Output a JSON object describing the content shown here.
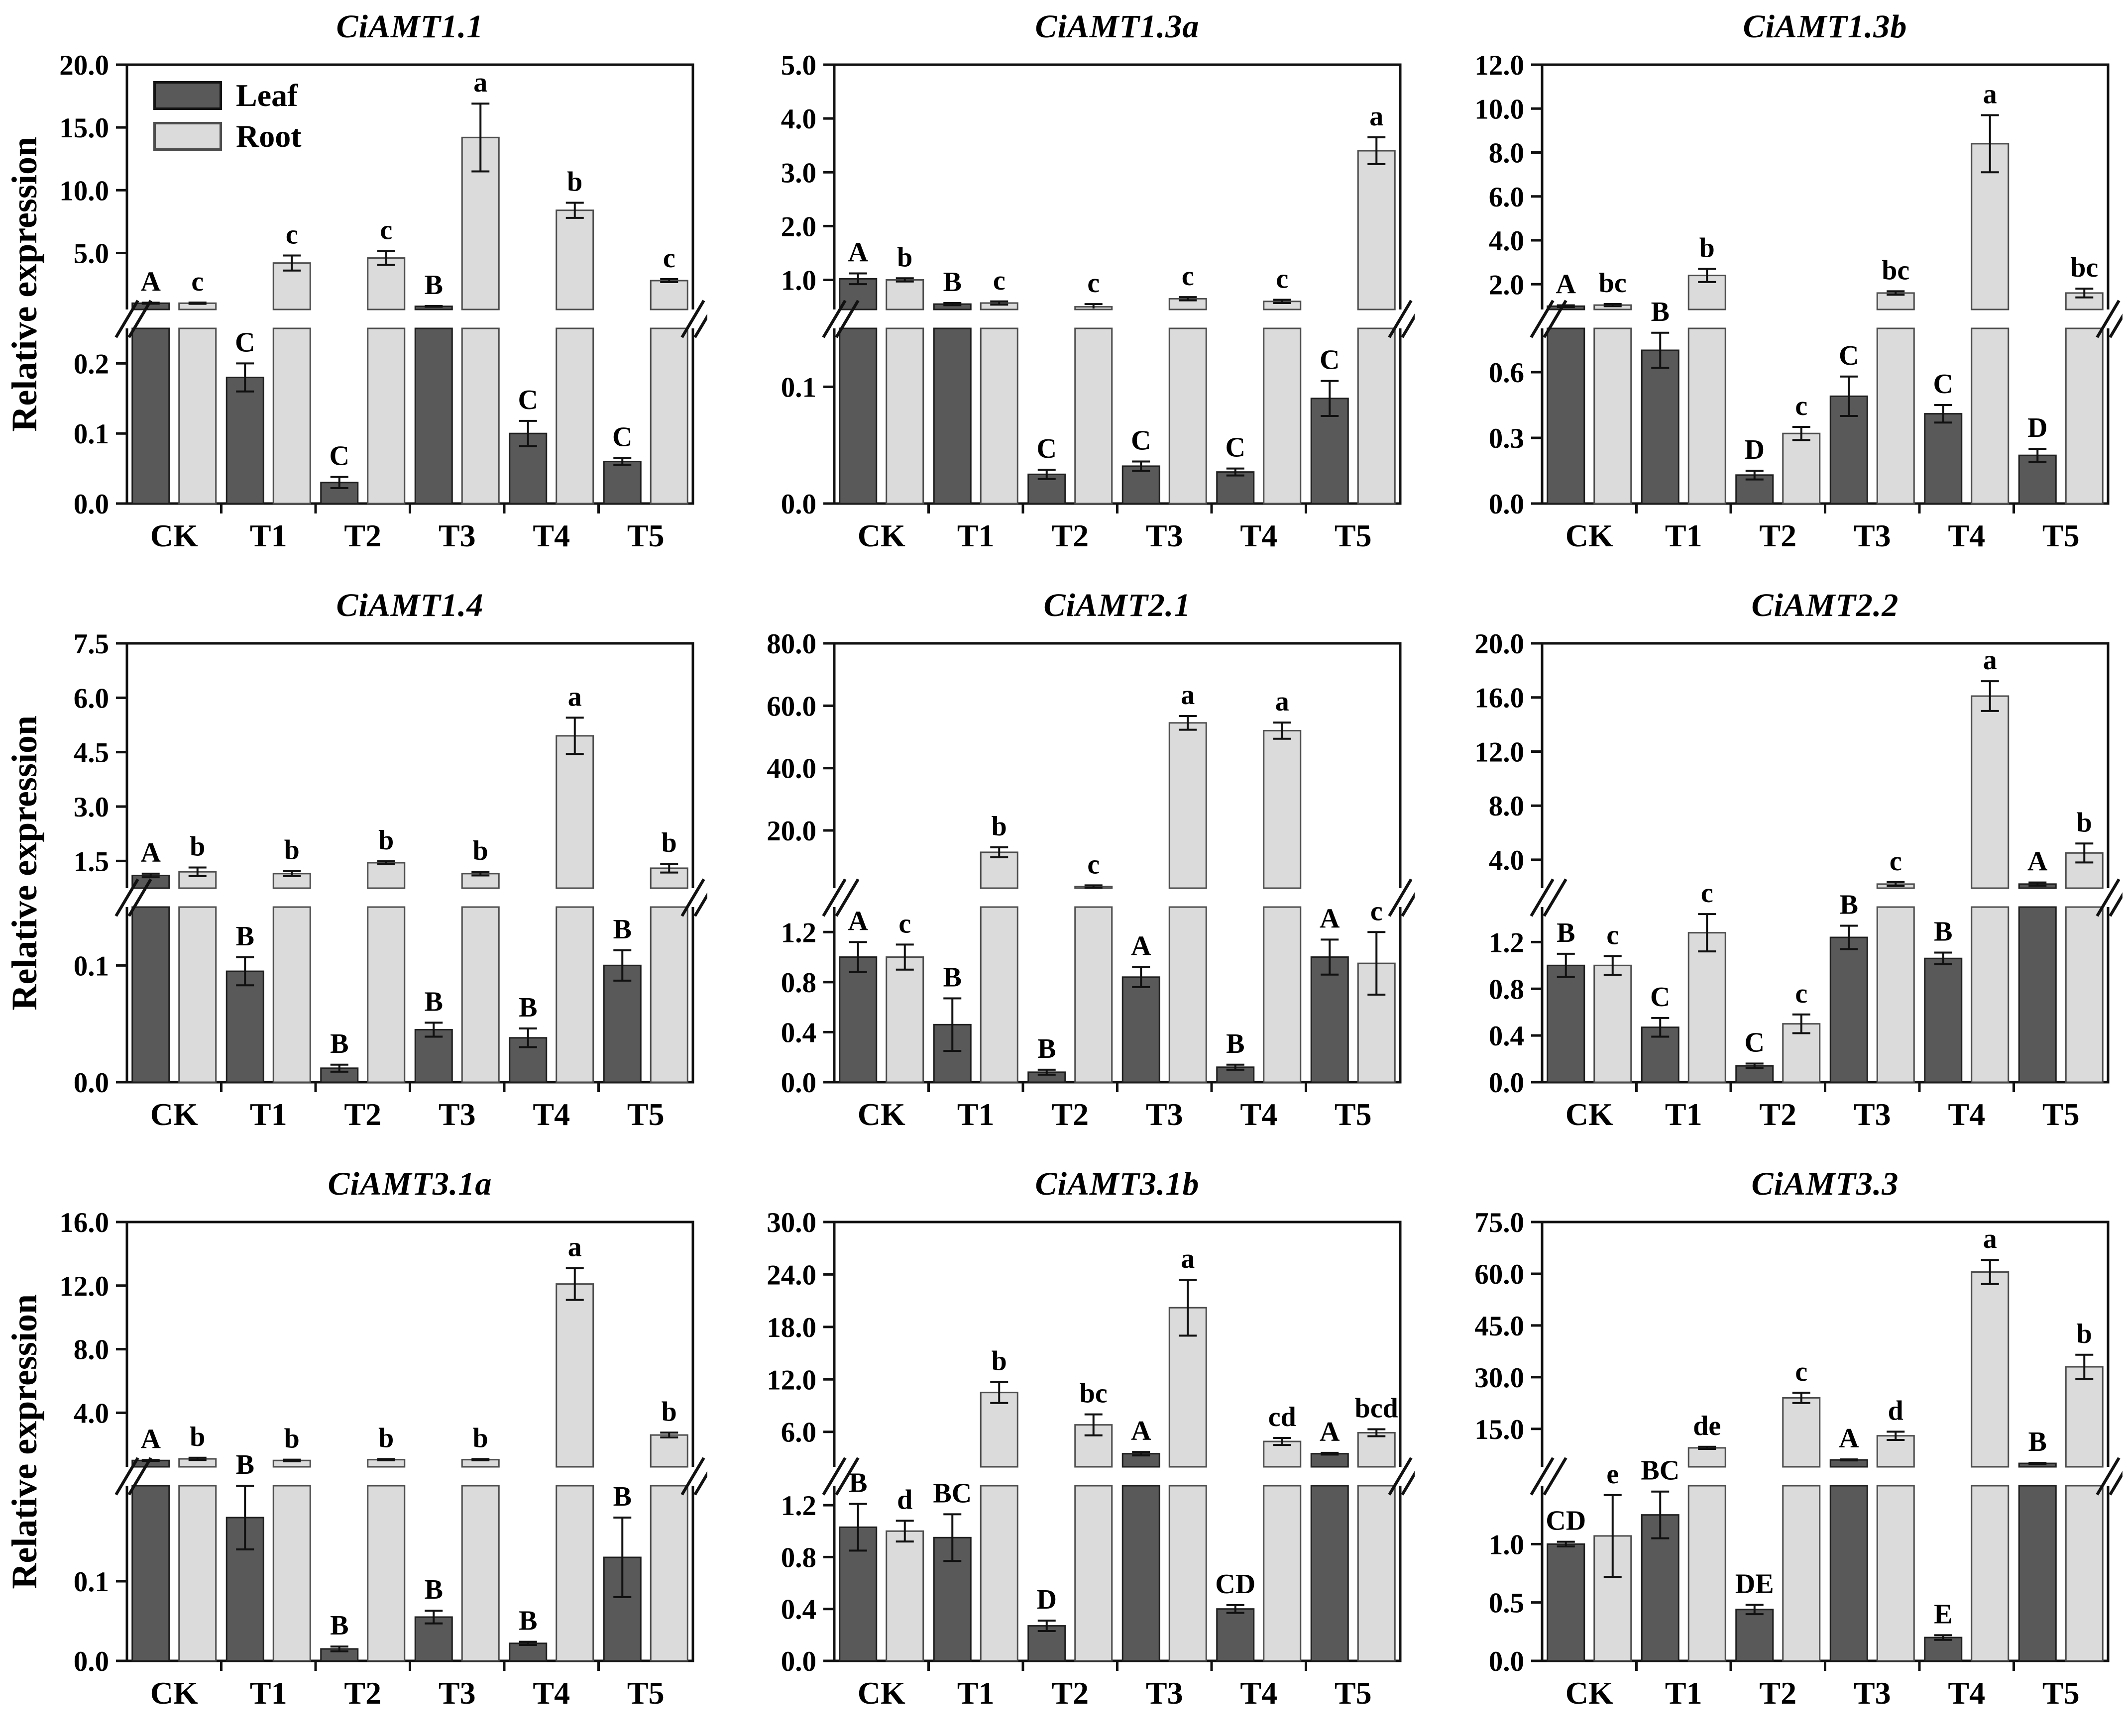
{
  "figure": {
    "ylabel": "Relative expression",
    "legend": {
      "leaf_label": "Leaf",
      "root_label": "Root"
    },
    "categories": [
      "CK",
      "T1",
      "T2",
      "T3",
      "T4",
      "T5"
    ],
    "colors": {
      "leaf_fill": "#595959",
      "leaf_stroke": "#1f1f1f",
      "root_fill": "#dbdbdb",
      "root_stroke": "#4d4d4d",
      "axis": "#111111",
      "text": "#000000"
    }
  },
  "chart_data": [
    {
      "type": "bar",
      "title": "CiAMT1.1",
      "categories": [
        "CK",
        "T1",
        "T2",
        "T3",
        "T4",
        "T5"
      ],
      "xlabel": "",
      "ylabel": "Relative expression",
      "axis": {
        "lower_ticks": [
          0,
          0.1,
          0.2
        ],
        "lower_max": 0.25,
        "upper_min": 0.5,
        "upper_max": 20,
        "upper_ticks": [
          5,
          10,
          15,
          20
        ],
        "grid": false
      },
      "series": [
        {
          "name": "Leaf",
          "values": [
            1.0,
            0.18,
            0.03,
            0.75,
            0.1,
            0.06
          ],
          "errors": [
            0.04,
            0.02,
            0.008,
            0.03,
            0.018,
            0.005
          ],
          "letters": [
            "A",
            "C",
            "C",
            "B",
            "C",
            "C"
          ]
        },
        {
          "name": "Root",
          "values": [
            1.0,
            4.2,
            4.6,
            14.2,
            8.4,
            2.8
          ],
          "errors": [
            0.05,
            0.6,
            0.55,
            2.7,
            0.6,
            0.12
          ],
          "letters": [
            "c",
            "c",
            "c",
            "a",
            "b",
            "c"
          ]
        }
      ]
    },
    {
      "type": "bar",
      "title": "CiAMT1.3a",
      "categories": [
        "CK",
        "T1",
        "T2",
        "T3",
        "T4",
        "T5"
      ],
      "xlabel": "",
      "ylabel": "Relative expression",
      "axis": {
        "lower_ticks": [
          0,
          0.1
        ],
        "lower_max": 0.15,
        "upper_min": 0.45,
        "upper_max": 5,
        "upper_ticks": [
          1,
          2,
          3,
          4,
          5
        ],
        "grid": false
      },
      "series": [
        {
          "name": "Leaf",
          "values": [
            1.02,
            0.55,
            0.025,
            0.032,
            0.027,
            0.09
          ],
          "errors": [
            0.1,
            0.02,
            0.004,
            0.004,
            0.003,
            0.015
          ],
          "letters": [
            "A",
            "B",
            "C",
            "C",
            "C",
            "C"
          ]
        },
        {
          "name": "Root",
          "values": [
            1.0,
            0.57,
            0.5,
            0.65,
            0.6,
            3.4
          ],
          "errors": [
            0.03,
            0.03,
            0.05,
            0.03,
            0.03,
            0.25
          ],
          "letters": [
            "b",
            "c",
            "c",
            "c",
            "c",
            "a"
          ]
        }
      ]
    },
    {
      "type": "bar",
      "title": "CiAMT1.3b",
      "categories": [
        "CK",
        "T1",
        "T2",
        "T3",
        "T4",
        "T5"
      ],
      "xlabel": "",
      "ylabel": "Relative expression",
      "axis": {
        "lower_ticks": [
          0,
          0.3,
          0.6
        ],
        "lower_max": 0.8,
        "upper_min": 0.85,
        "upper_max": 12,
        "upper_ticks": [
          2,
          4,
          6,
          8,
          10,
          12
        ],
        "grid": false
      },
      "series": [
        {
          "name": "Leaf",
          "values": [
            1.0,
            0.7,
            0.13,
            0.49,
            0.41,
            0.22
          ],
          "errors": [
            0.04,
            0.08,
            0.02,
            0.09,
            0.04,
            0.03
          ],
          "letters": [
            "A",
            "B",
            "D",
            "C",
            "C",
            "D"
          ]
        },
        {
          "name": "Root",
          "values": [
            1.05,
            2.4,
            0.32,
            1.6,
            8.4,
            1.6
          ],
          "errors": [
            0.05,
            0.3,
            0.03,
            0.08,
            1.3,
            0.2
          ],
          "letters": [
            "bc",
            "b",
            "c",
            "bc",
            "a",
            "bc"
          ]
        }
      ]
    },
    {
      "type": "bar",
      "title": "CiAMT1.4",
      "categories": [
        "CK",
        "T1",
        "T2",
        "T3",
        "T4",
        "T5"
      ],
      "xlabel": "",
      "ylabel": "Relative expression",
      "axis": {
        "lower_ticks": [
          0,
          0.1
        ],
        "lower_max": 0.15,
        "upper_min": 0.75,
        "upper_max": 7.5,
        "upper_ticks": [
          1.5,
          3,
          4.5,
          6,
          7.5
        ],
        "grid": false
      },
      "series": [
        {
          "name": "Leaf",
          "values": [
            1.1,
            0.095,
            0.012,
            0.045,
            0.038,
            0.1
          ],
          "errors": [
            0.05,
            0.012,
            0.003,
            0.006,
            0.008,
            0.013
          ],
          "letters": [
            "A",
            "B",
            "B",
            "B",
            "B",
            "B"
          ]
        },
        {
          "name": "Root",
          "values": [
            1.2,
            1.15,
            1.45,
            1.15,
            4.95,
            1.3
          ],
          "errors": [
            0.12,
            0.07,
            0.04,
            0.05,
            0.5,
            0.12
          ],
          "letters": [
            "b",
            "b",
            "b",
            "b",
            "a",
            "b"
          ]
        }
      ]
    },
    {
      "type": "bar",
      "title": "CiAMT2.1",
      "categories": [
        "CK",
        "T1",
        "T2",
        "T3",
        "T4",
        "T5"
      ],
      "xlabel": "",
      "ylabel": "Relative expression",
      "axis": {
        "lower_ticks": [
          0,
          0.4,
          0.8,
          1.2
        ],
        "lower_max": 1.4,
        "upper_min": 1.5,
        "upper_max": 80,
        "upper_ticks": [
          20,
          40,
          60,
          80
        ],
        "grid": false
      },
      "series": [
        {
          "name": "Leaf",
          "values": [
            1.0,
            0.46,
            0.08,
            0.84,
            0.12,
            1.0
          ],
          "errors": [
            0.12,
            0.21,
            0.02,
            0.08,
            0.02,
            0.14
          ],
          "letters": [
            "A",
            "B",
            "B",
            "A",
            "B",
            "A"
          ]
        },
        {
          "name": "Root",
          "values": [
            1.0,
            13.0,
            2.0,
            54.5,
            52.0,
            0.95
          ],
          "errors": [
            0.1,
            1.6,
            0.4,
            2.2,
            2.6,
            0.25
          ],
          "letters": [
            "c",
            "b",
            "c",
            "a",
            "a",
            "c"
          ]
        }
      ]
    },
    {
      "type": "bar",
      "title": "CiAMT2.2",
      "categories": [
        "CK",
        "T1",
        "T2",
        "T3",
        "T4",
        "T5"
      ],
      "xlabel": "",
      "ylabel": "Relative expression",
      "axis": {
        "lower_ticks": [
          0,
          0.4,
          0.8,
          1.2
        ],
        "lower_max": 1.5,
        "upper_min": 1.9,
        "upper_max": 20,
        "upper_ticks": [
          4,
          8,
          12,
          16,
          20
        ],
        "grid": false
      },
      "series": [
        {
          "name": "Leaf",
          "values": [
            1.0,
            0.47,
            0.14,
            1.24,
            1.06,
            2.2
          ],
          "errors": [
            0.1,
            0.08,
            0.02,
            0.1,
            0.05,
            0.12
          ],
          "letters": [
            "B",
            "C",
            "C",
            "B",
            "B",
            "A"
          ]
        },
        {
          "name": "Root",
          "values": [
            1.0,
            1.28,
            0.5,
            2.2,
            16.1,
            4.5
          ],
          "errors": [
            0.08,
            0.16,
            0.08,
            0.15,
            1.1,
            0.7
          ],
          "letters": [
            "c",
            "c",
            "c",
            "c",
            "a",
            "b"
          ]
        }
      ]
    },
    {
      "type": "bar",
      "title": "CiAMT3.1a",
      "categories": [
        "CK",
        "T1",
        "T2",
        "T3",
        "T4",
        "T5"
      ],
      "xlabel": "",
      "ylabel": "Relative expression",
      "axis": {
        "lower_ticks": [
          0,
          0.1
        ],
        "lower_max": 0.22,
        "upper_min": 0.6,
        "upper_max": 16,
        "upper_ticks": [
          4,
          8,
          12,
          16
        ],
        "grid": false
      },
      "series": [
        {
          "name": "Leaf",
          "values": [
            1.0,
            0.18,
            0.015,
            0.055,
            0.022,
            0.13
          ],
          "errors": [
            0.03,
            0.04,
            0.003,
            0.008,
            0.002,
            0.05
          ],
          "letters": [
            "A",
            "B",
            "B",
            "B",
            "B",
            "B"
          ]
        },
        {
          "name": "Root",
          "values": [
            1.1,
            1.0,
            1.05,
            1.05,
            12.1,
            2.6
          ],
          "errors": [
            0.07,
            0.05,
            0.04,
            0.04,
            1.0,
            0.15
          ],
          "letters": [
            "b",
            "b",
            "b",
            "b",
            "a",
            "b"
          ]
        }
      ]
    },
    {
      "type": "bar",
      "title": "CiAMT3.1b",
      "categories": [
        "CK",
        "T1",
        "T2",
        "T3",
        "T4",
        "T5"
      ],
      "xlabel": "",
      "ylabel": "Relative expression",
      "axis": {
        "lower_ticks": [
          0,
          0.4,
          0.8,
          1.2
        ],
        "lower_max": 1.35,
        "upper_min": 2.0,
        "upper_max": 30,
        "upper_ticks": [
          6,
          12,
          18,
          24,
          30
        ],
        "grid": false
      },
      "series": [
        {
          "name": "Leaf",
          "values": [
            1.03,
            0.95,
            0.27,
            3.5,
            0.4,
            3.5
          ],
          "errors": [
            0.18,
            0.18,
            0.04,
            0.2,
            0.03,
            0.1
          ],
          "letters": [
            "B",
            "BC",
            "D",
            "A",
            "CD",
            "A"
          ]
        },
        {
          "name": "Root",
          "values": [
            1.0,
            10.5,
            6.8,
            20.2,
            4.9,
            5.9
          ],
          "errors": [
            0.08,
            1.2,
            1.2,
            3.2,
            0.4,
            0.4
          ],
          "letters": [
            "d",
            "b",
            "bc",
            "a",
            "cd",
            "bcd"
          ]
        }
      ]
    },
    {
      "type": "bar",
      "title": "CiAMT3.3",
      "categories": [
        "CK",
        "T1",
        "T2",
        "T3",
        "T4",
        "T5"
      ],
      "xlabel": "",
      "ylabel": "Relative expression",
      "axis": {
        "lower_ticks": [
          0,
          0.5,
          1.0
        ],
        "lower_max": 1.5,
        "upper_min": 4.0,
        "upper_max": 75,
        "upper_ticks": [
          15,
          30,
          45,
          60,
          75
        ],
        "grid": false
      },
      "series": [
        {
          "name": "Leaf",
          "values": [
            1.0,
            1.25,
            0.44,
            6.0,
            0.2,
            5.0
          ],
          "errors": [
            0.02,
            0.2,
            0.04,
            0.15,
            0.02,
            0.15
          ],
          "letters": [
            "CD",
            "BC",
            "DE",
            "A",
            "E",
            "B"
          ]
        },
        {
          "name": "Root",
          "values": [
            1.07,
            9.5,
            24.0,
            13.0,
            60.5,
            33.0
          ],
          "errors": [
            0.35,
            0.3,
            1.5,
            1.2,
            3.5,
            3.5
          ],
          "letters": [
            "e",
            "de",
            "c",
            "d",
            "a",
            "b"
          ]
        }
      ]
    }
  ]
}
